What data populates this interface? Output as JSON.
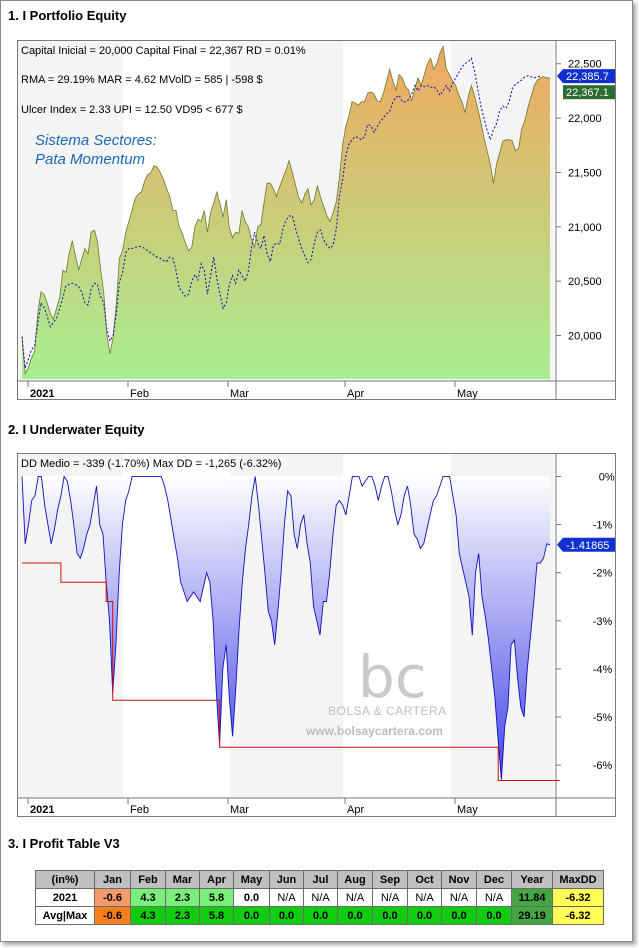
{
  "titles": {
    "equity": "1. I Portfolio Equity",
    "underwater": "2. I Underwater Equity",
    "profit": "3. I Profit Table V3"
  },
  "equity_stats": {
    "line1": "Capital Inicial = 20,000  Capital Final = 22,367   RD = 0.01%",
    "line2": "RMA = 29.19%   MAR = 4.62   MVolD = 585 | -598 $",
    "line3": "Ulcer Index = 2.33   UPI = 12.50   VD95 < 677 $",
    "system_name_1": "Sistema Sectores:",
    "system_name_2": "Pata Momentum",
    "tag_blue": "22,385.7",
    "tag_green": "22,367.1"
  },
  "underwater_stats": {
    "line1": "DD Medio = -339 (-1.70%)         Max DD = -1,265 (-6.32%)",
    "tag_blue": "-1.41865"
  },
  "watermark": {
    "logo": "bc",
    "name": "BOLSA & CARTERA",
    "url": "www.bolsaycartera.com"
  },
  "colors": {
    "equity_top": "#f0a860",
    "equity_bottom": "#a8ee90",
    "dotted_line": "#1a1ab8",
    "underwater_fill": "#3a3ae6",
    "max_dd_line": "#d01010",
    "tag_blue_bg": "#1030d0",
    "tag_green_bg": "#2e6b2e"
  },
  "chart_data": [
    {
      "type": "area",
      "title": "1. I Portfolio Equity",
      "x_tick_labels": [
        "2021",
        "Feb",
        "Mar",
        "Apr",
        "May"
      ],
      "y_ticks": [
        "20,000",
        "20,500",
        "21,000",
        "21,500",
        "22,000",
        "22,500"
      ],
      "ylim": [
        19600,
        22700
      ],
      "series": [
        {
          "style": "area",
          "values": [
            19990,
            19650,
            19700,
            19790,
            19850,
            20200,
            20400,
            20380,
            20300,
            20200,
            20150,
            20250,
            20350,
            20600,
            20580,
            20750,
            20870,
            20740,
            20600,
            20700,
            20800,
            20750,
            20950,
            20970,
            20870,
            20610,
            20400,
            20000,
            19830,
            19980,
            20290,
            20710,
            20780,
            20950,
            21050,
            21150,
            21260,
            21300,
            21320,
            21420,
            21480,
            21500,
            21560,
            21550,
            21500,
            21440,
            21350,
            21280,
            21150,
            21150,
            21000,
            20940,
            20850,
            20780,
            20810,
            21000,
            21070,
            21050,
            21150,
            20950,
            21130,
            21220,
            21320,
            21210,
            21090,
            21250,
            20990,
            20900,
            20950,
            20940,
            21150,
            21050,
            21000,
            20890,
            20810,
            21000,
            21020,
            21220,
            21400,
            21400,
            21350,
            21280,
            21370,
            21450,
            21520,
            21610,
            21500,
            21390,
            21270,
            21220,
            21300,
            21350,
            21200,
            21250,
            21380,
            21270,
            21190,
            21100,
            21050,
            21130,
            21230,
            21450,
            21750,
            21920,
            22020,
            22150,
            22140,
            22120,
            22150,
            22150,
            22230,
            22240,
            22220,
            22160,
            22150,
            22230,
            22340,
            22450,
            22340,
            22260,
            22400,
            22370,
            22290,
            22260,
            22160,
            22270,
            22370,
            22300,
            22400,
            22500,
            22550,
            22450,
            22500,
            22600,
            22660,
            22450,
            22400,
            22340,
            22300,
            22210,
            22150,
            22050,
            22200,
            22300,
            22200,
            22090,
            21960,
            21820,
            21700,
            21580,
            21400,
            21580,
            21680,
            21790,
            21800,
            21800,
            21790,
            21700,
            21720,
            21900,
            21980,
            22100,
            22200,
            22300,
            22350,
            22370,
            22380,
            22370,
            22367
          ]
        },
        {
          "style": "dotted",
          "values": [
            19990,
            19700,
            19780,
            19870,
            19900,
            20100,
            20300,
            20260,
            20180,
            20080,
            20120,
            20160,
            20250,
            20350,
            20460,
            20470,
            20480,
            20470,
            20450,
            20400,
            20300,
            20280,
            20430,
            20480,
            20470,
            20360,
            20300,
            20050,
            19950,
            20000,
            20200,
            20490,
            20580,
            20760,
            20800,
            20800,
            20810,
            20820,
            20820,
            20800,
            20780,
            20760,
            20740,
            20720,
            20710,
            20690,
            20680,
            20720,
            20710,
            20600,
            20440,
            20400,
            20360,
            20380,
            20500,
            20560,
            20510,
            20660,
            20600,
            20380,
            20550,
            20720,
            20520,
            20380,
            20250,
            20300,
            20470,
            20550,
            20480,
            20600,
            20550,
            20500,
            20590,
            20800,
            20950,
            20850,
            20800,
            20920,
            20750,
            20680,
            20830,
            20850,
            20840,
            20980,
            21060,
            21100,
            21100,
            20990,
            20890,
            20800,
            20730,
            20670,
            20700,
            20850,
            20950,
            20970,
            20880,
            20830,
            20800,
            20830,
            20980,
            21280,
            21430,
            21650,
            21760,
            21800,
            21830,
            21820,
            21800,
            21830,
            21940,
            21930,
            21870,
            21920,
            21970,
            22000,
            22040,
            22060,
            22150,
            22190,
            22210,
            22150,
            22150,
            22170,
            22220,
            22300,
            22250,
            22300,
            22290,
            22300,
            22280,
            22290,
            22260,
            22210,
            22250,
            22300,
            22250,
            22320,
            22370,
            22420,
            22470,
            22500,
            22520,
            22550,
            22430,
            22270,
            22110,
            22000,
            21890,
            21800,
            21890,
            21950,
            22070,
            22110,
            22090,
            22150,
            22270,
            22310,
            22330,
            22350,
            22380,
            22390,
            22380,
            22370,
            22380,
            22386
          ]
        }
      ]
    },
    {
      "type": "area",
      "title": "2. I Underwater Equity",
      "x_tick_labels": [
        "2021",
        "Feb",
        "Mar",
        "Apr",
        "May"
      ],
      "y_ticks": [
        "0%",
        "-1%",
        "-2%",
        "-3%",
        "-4%",
        "-5%",
        "-6%"
      ],
      "ylim": [
        -6.6,
        0.3
      ],
      "series": [
        {
          "style": "area",
          "values": [
            0,
            -1.4,
            -1.0,
            -0.5,
            -0.4,
            0,
            0,
            -0.6,
            -1.0,
            -1.4,
            -1.1,
            -0.7,
            -0.4,
            0,
            -0.1,
            -0.5,
            -1.0,
            -1.6,
            -1.7,
            -1.5,
            -1.2,
            -1.0,
            -0.6,
            -0.2,
            -1.0,
            -1.2,
            -2.2,
            -3.0,
            -4.5,
            -3.5,
            -2.0,
            -1.0,
            -0.5,
            -0.3,
            0,
            0,
            0,
            0,
            0,
            0,
            0,
            0,
            0,
            0,
            -0.2,
            -0.5,
            -0.9,
            -1.3,
            -1.7,
            -2.2,
            -2.4,
            -2.6,
            -2.5,
            -2.4,
            -2.5,
            -2.6,
            -2.3,
            -2.0,
            -2.2,
            -3.0,
            -4.5,
            -5.6,
            -4.0,
            -3.5,
            -4.6,
            -5.4,
            -4.4,
            -3.2,
            -2.2,
            -1.5,
            -1.0,
            -0.4,
            0,
            -0.6,
            -1.3,
            -2.0,
            -2.8,
            -3.0,
            -3.5,
            -2.8,
            -2.0,
            -1.0,
            -0.3,
            -0.4,
            -1.2,
            -1.5,
            -1.0,
            -0.8,
            -1.4,
            -1.8,
            -2.7,
            -3.0,
            -3.3,
            -2.6,
            -2.6,
            -2.0,
            -1.2,
            -0.6,
            -0.5,
            -0.6,
            -0.8,
            -0.4,
            0,
            0,
            0,
            -0.2,
            -0.1,
            0,
            0,
            -0.2,
            -0.5,
            -0.2,
            0,
            0,
            -0.3,
            -0.7,
            -1.0,
            -0.8,
            -0.4,
            -0.2,
            -0.6,
            -1.2,
            -1.3,
            -1.5,
            -1.4,
            -1.1,
            -0.8,
            -0.5,
            -0.4,
            -0.2,
            0,
            0,
            0,
            -0.4,
            -0.8,
            -1.6,
            -1.9,
            -2.2,
            -2.5,
            -3.3,
            -2.0,
            -1.6,
            -2.5,
            -2.9,
            -3.4,
            -4.0,
            -4.6,
            -5.5,
            -6.3,
            -5.2,
            -4.8,
            -3.5,
            -3.4,
            -4.2,
            -4.8,
            -5.0,
            -4.0,
            -3.3,
            -2.6,
            -1.8,
            -1.8,
            -1.7,
            -1.4,
            -1.42
          ]
        },
        {
          "style": "step",
          "values": [
            -1.8,
            -1.8,
            -1.8,
            -1.8,
            -1.8,
            -1.8,
            -1.8,
            -1.8,
            -1.8,
            -1.8,
            -1.8,
            -1.8,
            -2.2,
            -2.2,
            -2.2,
            -2.2,
            -2.2,
            -2.2,
            -2.2,
            -2.2,
            -2.2,
            -2.2,
            -2.2,
            -2.2,
            -2.2,
            -2.2,
            -2.6,
            -2.6,
            -4.65,
            -4.65,
            -4.65,
            -4.65,
            -4.65,
            -4.65,
            -4.65,
            -4.65,
            -4.65,
            -4.65,
            -4.65,
            -4.65,
            -4.65,
            -4.65,
            -4.65,
            -4.65,
            -4.65,
            -4.65,
            -4.65,
            -4.65,
            -4.65,
            -4.65,
            -4.65,
            -4.65,
            -4.65,
            -4.65,
            -4.65,
            -4.65,
            -4.65,
            -4.65,
            -4.65,
            -4.65,
            -4.65,
            -5.63,
            -5.63,
            -5.63,
            -5.63,
            -5.63,
            -5.63,
            -5.63,
            -5.63,
            -5.63,
            -5.63,
            -5.63,
            -5.63,
            -5.63,
            -5.63,
            -5.63,
            -5.63,
            -5.63,
            -5.63,
            -5.63,
            -5.63,
            -5.63,
            -5.63,
            -5.63,
            -5.63,
            -5.63,
            -5.63,
            -5.63,
            -5.63,
            -5.63,
            -5.63,
            -5.63,
            -5.63,
            -5.63,
            -5.63,
            -5.63,
            -5.63,
            -5.63,
            -5.63,
            -5.63,
            -5.63,
            -5.63,
            -5.63,
            -5.63,
            -5.63,
            -5.63,
            -5.63,
            -5.63,
            -5.63,
            -5.63,
            -5.63,
            -5.63,
            -5.63,
            -5.63,
            -5.63,
            -5.63,
            -5.63,
            -5.63,
            -5.63,
            -5.63,
            -5.63,
            -5.63,
            -5.63,
            -5.63,
            -5.63,
            -5.63,
            -5.63,
            -5.63,
            -5.63,
            -5.63,
            -5.63,
            -5.63,
            -5.63,
            -5.63,
            -5.63,
            -5.63,
            -5.63,
            -5.63,
            -5.63,
            -5.63,
            -5.63,
            -5.63,
            -5.63,
            -5.63,
            -5.63,
            -5.63,
            -5.63,
            -6.32,
            -6.32,
            -6.32,
            -6.32,
            -6.32,
            -6.32,
            -6.32,
            -6.32,
            -6.32,
            -6.32,
            -6.32,
            -6.32,
            -6.32,
            -6.32,
            -6.32,
            -6.32,
            -6.32,
            -6.32,
            -6.32,
            -6.32
          ]
        }
      ]
    },
    {
      "type": "table",
      "title": "3. I Profit Table V3",
      "columns": [
        "(in%)",
        "Jan",
        "Feb",
        "Mar",
        "Apr",
        "May",
        "Jun",
        "Jul",
        "Aug",
        "Sep",
        "Oct",
        "Nov",
        "Dec",
        "Year",
        "MaxDD"
      ],
      "rows": [
        {
          "label": "2021",
          "cells": [
            "-0.6",
            "4.3",
            "2.3",
            "5.8",
            "0.0",
            "N/A",
            "N/A",
            "N/A",
            "N/A",
            "N/A",
            "N/A",
            "N/A",
            "11.84",
            "-6.32"
          ]
        },
        {
          "label": "Avg|Max",
          "cells": [
            "-0.6",
            "4.3",
            "2.3",
            "5.8",
            "0.0",
            "0.0",
            "0.0",
            "0.0",
            "0.0",
            "0.0",
            "0.0",
            "0.0",
            "29.19",
            "-6.32"
          ]
        }
      ]
    }
  ]
}
